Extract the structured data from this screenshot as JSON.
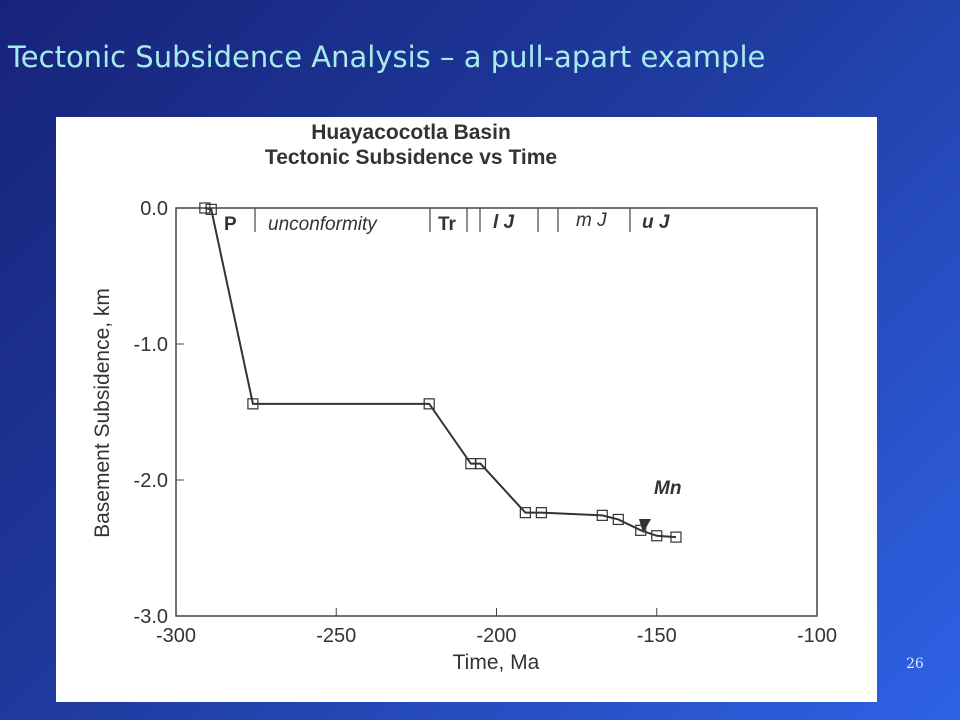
{
  "slide": {
    "title": "Tectonic Subsidence Analysis – a pull-apart example",
    "page_number": "26"
  },
  "chart_data": {
    "type": "line",
    "title": "Huayacocotla Basin",
    "subtitle": "Tectonic Subsidence vs Time",
    "x_label": "Time, Ma",
    "y_label": "Basement Subsidence, km",
    "x": [
      -291,
      -289,
      -276,
      -221,
      -208,
      -205,
      -191,
      -186,
      -167,
      -162,
      -155,
      -150,
      -144
    ],
    "series": [
      {
        "name": "Tectonic subsidence",
        "color": "#333333",
        "values": [
          0,
          -0.01,
          -1.44,
          -1.44,
          -1.88,
          -1.88,
          -2.24,
          -2.24,
          -2.26,
          -2.29,
          -2.37,
          -2.41,
          -2.42
        ]
      }
    ],
    "xlim": [
      -300,
      -100
    ],
    "xticks": [
      -300,
      -250,
      -200,
      -150,
      -100
    ],
    "ylim": [
      -3,
      0
    ],
    "yticks": [
      {
        "value": 0,
        "label": "0.0"
      },
      {
        "value": -1,
        "label": "-1.0"
      },
      {
        "value": -2,
        "label": "-2.0"
      },
      {
        "value": -3,
        "label": "-3.0"
      }
    ],
    "grid": false,
    "annotations": [
      "P",
      "unconformity",
      "Tr",
      "l J",
      "m J",
      "u J",
      "Mn"
    ]
  }
}
